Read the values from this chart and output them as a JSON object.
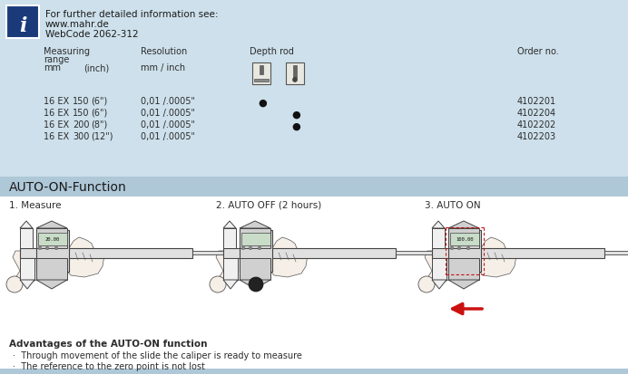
{
  "bg_top": "#cde0eb",
  "bg_auto_bar": "#aec8d8",
  "bg_bottom": "#ffffff",
  "info_box_color": "#1a3a7a",
  "text_color": "#2c2c2c",
  "dark_text": "#1a1a1a",
  "red_color": "#cc1111",
  "header_line1": "For further detailed information see:",
  "header_line2": "www.mahr.de",
  "header_line3": "WebCode 2062-312",
  "auto_on_title": "AUTO-ON-Function",
  "step_labels": [
    "1. Measure",
    "2. AUTO OFF (2 hours)",
    "3. AUTO ON"
  ],
  "advantages_title": "Advantages of the AUTO-ON function",
  "advantages": [
    "Through movement of the slide the caliper is ready to measure",
    "The reference to the zero point is not lost"
  ],
  "rows": [
    [
      "16 EX",
      "150",
      "(6\")",
      "0,01 /.0005\"",
      true,
      false,
      "4102201"
    ],
    [
      "16 EX",
      "150",
      "(6\")",
      "0,01 /.0005\"",
      false,
      true,
      "4102204"
    ],
    [
      "16 EX",
      "200",
      "(8\")",
      "0,01 /.0005\"",
      false,
      true,
      "4102202"
    ],
    [
      "16 EX",
      "300",
      "(12\")",
      "0,01 /.0005\"",
      false,
      false,
      "4102203"
    ]
  ]
}
